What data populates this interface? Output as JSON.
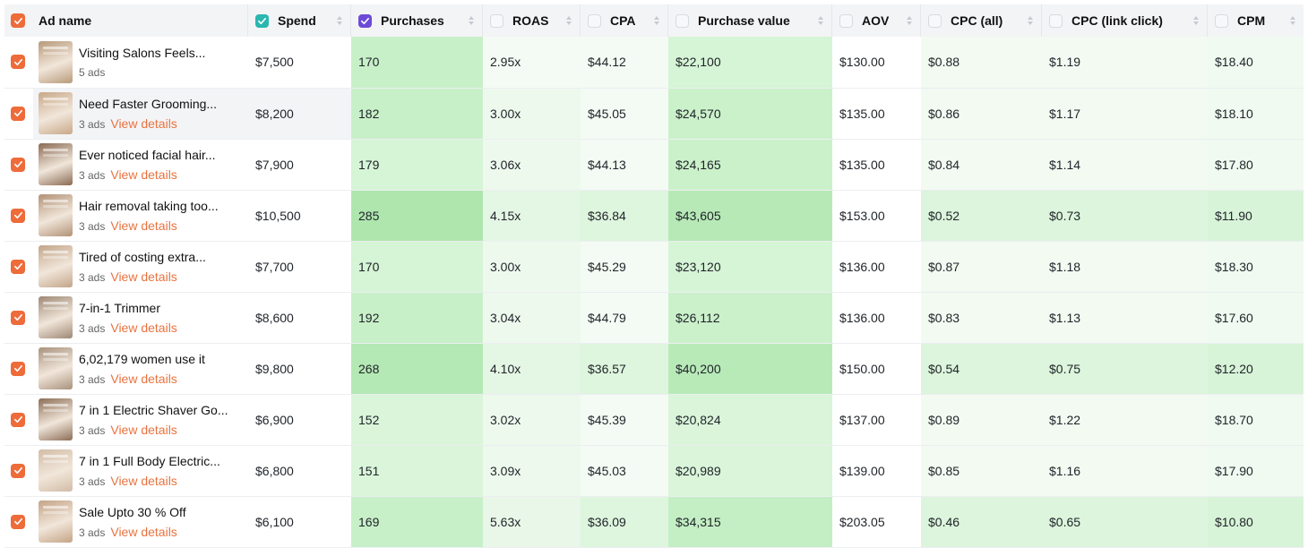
{
  "header": {
    "ad_name": "Ad name",
    "columns": [
      {
        "label": "Spend",
        "checked": true,
        "color": "#2ab7b0"
      },
      {
        "label": "Purchases",
        "checked": true,
        "color": "#6c4bd8"
      },
      {
        "label": "ROAS",
        "checked": false
      },
      {
        "label": "CPA",
        "checked": false
      },
      {
        "label": "Purchase value",
        "checked": false
      },
      {
        "label": "AOV",
        "checked": false
      },
      {
        "label": "CPC (all)",
        "checked": false
      },
      {
        "label": "CPC (link click)",
        "checked": false
      },
      {
        "label": "CPM",
        "checked": false
      }
    ]
  },
  "rows": [
    {
      "name": "Visiting Salons Feels...",
      "ads": "5 ads",
      "details": "",
      "spend": "$7,500",
      "purchases": "170",
      "roas": "2.95x",
      "cpa": "$44.12",
      "value": "$22,100",
      "aov": "$130.00",
      "cpc_all": "$0.88",
      "cpc_link": "$1.19",
      "cpm": "$18.40",
      "thumb": "#b89a7a"
    },
    {
      "name": "Need Faster Grooming...",
      "ads": "3 ads",
      "details": "View details",
      "spend": "$8,200",
      "purchases": "182",
      "roas": "3.00x",
      "cpa": "$45.05",
      "value": "$24,570",
      "aov": "$135.00",
      "cpc_all": "$0.86",
      "cpc_link": "$1.17",
      "cpm": "$18.10",
      "thumb": "#c8a888"
    },
    {
      "name": "Ever noticed facial hair...",
      "ads": "3 ads",
      "details": "View details",
      "spend": "$7,900",
      "purchases": "179",
      "roas": "3.06x",
      "cpa": "$44.13",
      "value": "$24,165",
      "aov": "$135.00",
      "cpc_all": "$0.84",
      "cpc_link": "$1.14",
      "cpm": "$17.80",
      "thumb": "#8a6a52"
    },
    {
      "name": "Hair removal taking too...",
      "ads": "3 ads",
      "details": "View details",
      "spend": "$10,500",
      "purchases": "285",
      "roas": "4.15x",
      "cpa": "$36.84",
      "value": "$43,605",
      "aov": "$153.00",
      "cpc_all": "$0.52",
      "cpc_link": "$0.73",
      "cpm": "$11.90",
      "thumb": "#b29276"
    },
    {
      "name": "Tired of costing extra...",
      "ads": "3 ads",
      "details": "View details",
      "spend": "$7,700",
      "purchases": "170",
      "roas": "3.00x",
      "cpa": "$45.29",
      "value": "$23,120",
      "aov": "$136.00",
      "cpc_all": "$0.87",
      "cpc_link": "$1.18",
      "cpm": "$18.30",
      "thumb": "#c2a58a"
    },
    {
      "name": "7-in-1 Trimmer",
      "ads": "3 ads",
      "details": "View details",
      "spend": "$8,600",
      "purchases": "192",
      "roas": "3.04x",
      "cpa": "$44.79",
      "value": "$26,112",
      "aov": "$136.00",
      "cpc_all": "$0.83",
      "cpc_link": "$1.13",
      "cpm": "$17.60",
      "thumb": "#9e8874"
    },
    {
      "name": "6,02,179 women use it",
      "ads": "3 ads",
      "details": "View details",
      "spend": "$9,800",
      "purchases": "268",
      "roas": "4.10x",
      "cpa": "$36.57",
      "value": "$40,200",
      "aov": "$150.00",
      "cpc_all": "$0.54",
      "cpc_link": "$0.75",
      "cpm": "$12.20",
      "thumb": "#a8927c"
    },
    {
      "name": "7 in 1 Electric Shaver Go...",
      "ads": "3 ads",
      "details": "View details",
      "spend": "$6,900",
      "purchases": "152",
      "roas": "3.02x",
      "cpa": "$45.39",
      "value": "$20,824",
      "aov": "$137.00",
      "cpc_all": "$0.89",
      "cpc_link": "$1.22",
      "cpm": "$18.70",
      "thumb": "#8c6e56"
    },
    {
      "name": "7 in 1 Full Body Electric...",
      "ads": "3 ads",
      "details": "View details",
      "spend": "$6,800",
      "purchases": "151",
      "roas": "3.09x",
      "cpa": "$45.03",
      "value": "$20,989",
      "aov": "$139.00",
      "cpc_all": "$0.85",
      "cpc_link": "$1.16",
      "cpm": "$17.90",
      "thumb": "#d2bca6"
    },
    {
      "name": "Sale Upto 30 % Off",
      "ads": "3 ads",
      "details": "View details",
      "spend": "$6,100",
      "purchases": "169",
      "roas": "5.63x",
      "cpa": "$36.09",
      "value": "$34,315",
      "aov": "$203.05",
      "cpc_all": "$0.46",
      "cpc_link": "$0.65",
      "cpm": "$10.80",
      "thumb": "#c4a486"
    }
  ],
  "heat": {
    "purchases": [
      "#c8f0c8",
      "#c8f0c8",
      "#d6f4d6",
      "#aee6ae",
      "#d6f4d6",
      "#c8f0c8",
      "#b4e8b4",
      "#daf5da",
      "#daf5da",
      "#c8f0c8"
    ],
    "roas": [
      "#f4fbf4",
      "#eef9ee",
      "#eef9ee",
      "#e4f6e4",
      "#eef9ee",
      "#eef9ee",
      "#e4f6e4",
      "#eef9ee",
      "#eef9ee",
      "#e8f7e8"
    ],
    "cpa": [
      "#f4fbf4",
      "#f4fbf4",
      "#f4fbf4",
      "#def5de",
      "#f4fbf4",
      "#f4fbf4",
      "#def5de",
      "#f4fbf4",
      "#f4fbf4",
      "#def5de"
    ],
    "value": [
      "#d6f4d6",
      "#cbf1cb",
      "#cbf1cb",
      "#b6e9b6",
      "#d6f4d6",
      "#cbf1cb",
      "#b8eab8",
      "#daf5da",
      "#daf5da",
      "#c4efc4"
    ],
    "aov": [
      "#ffffff",
      "#ffffff",
      "#ffffff",
      "#ffffff",
      "#ffffff",
      "#ffffff",
      "#ffffff",
      "#ffffff",
      "#ffffff",
      "#ffffff"
    ],
    "cpc_all": [
      "#f2faf2",
      "#f2faf2",
      "#f2faf2",
      "#dcf5dc",
      "#f2faf2",
      "#f2faf2",
      "#dcf5dc",
      "#f2faf2",
      "#f2faf2",
      "#dcf5dc"
    ],
    "cpc_link": [
      "#f2faf2",
      "#f2faf2",
      "#f2faf2",
      "#dcf5dc",
      "#f2faf2",
      "#f2faf2",
      "#dcf5dc",
      "#f2faf2",
      "#f2faf2",
      "#dcf5dc"
    ],
    "cpm": [
      "#f0faf0",
      "#f0faf0",
      "#f0faf0",
      "#d8f4d8",
      "#f0faf0",
      "#f0faf0",
      "#d8f4d8",
      "#f0faf0",
      "#f0faf0",
      "#d8f4d8"
    ]
  },
  "colors": {
    "accent": "#ee6b3a",
    "link": "#e8733f",
    "header_bg": "#f3f4f6"
  }
}
